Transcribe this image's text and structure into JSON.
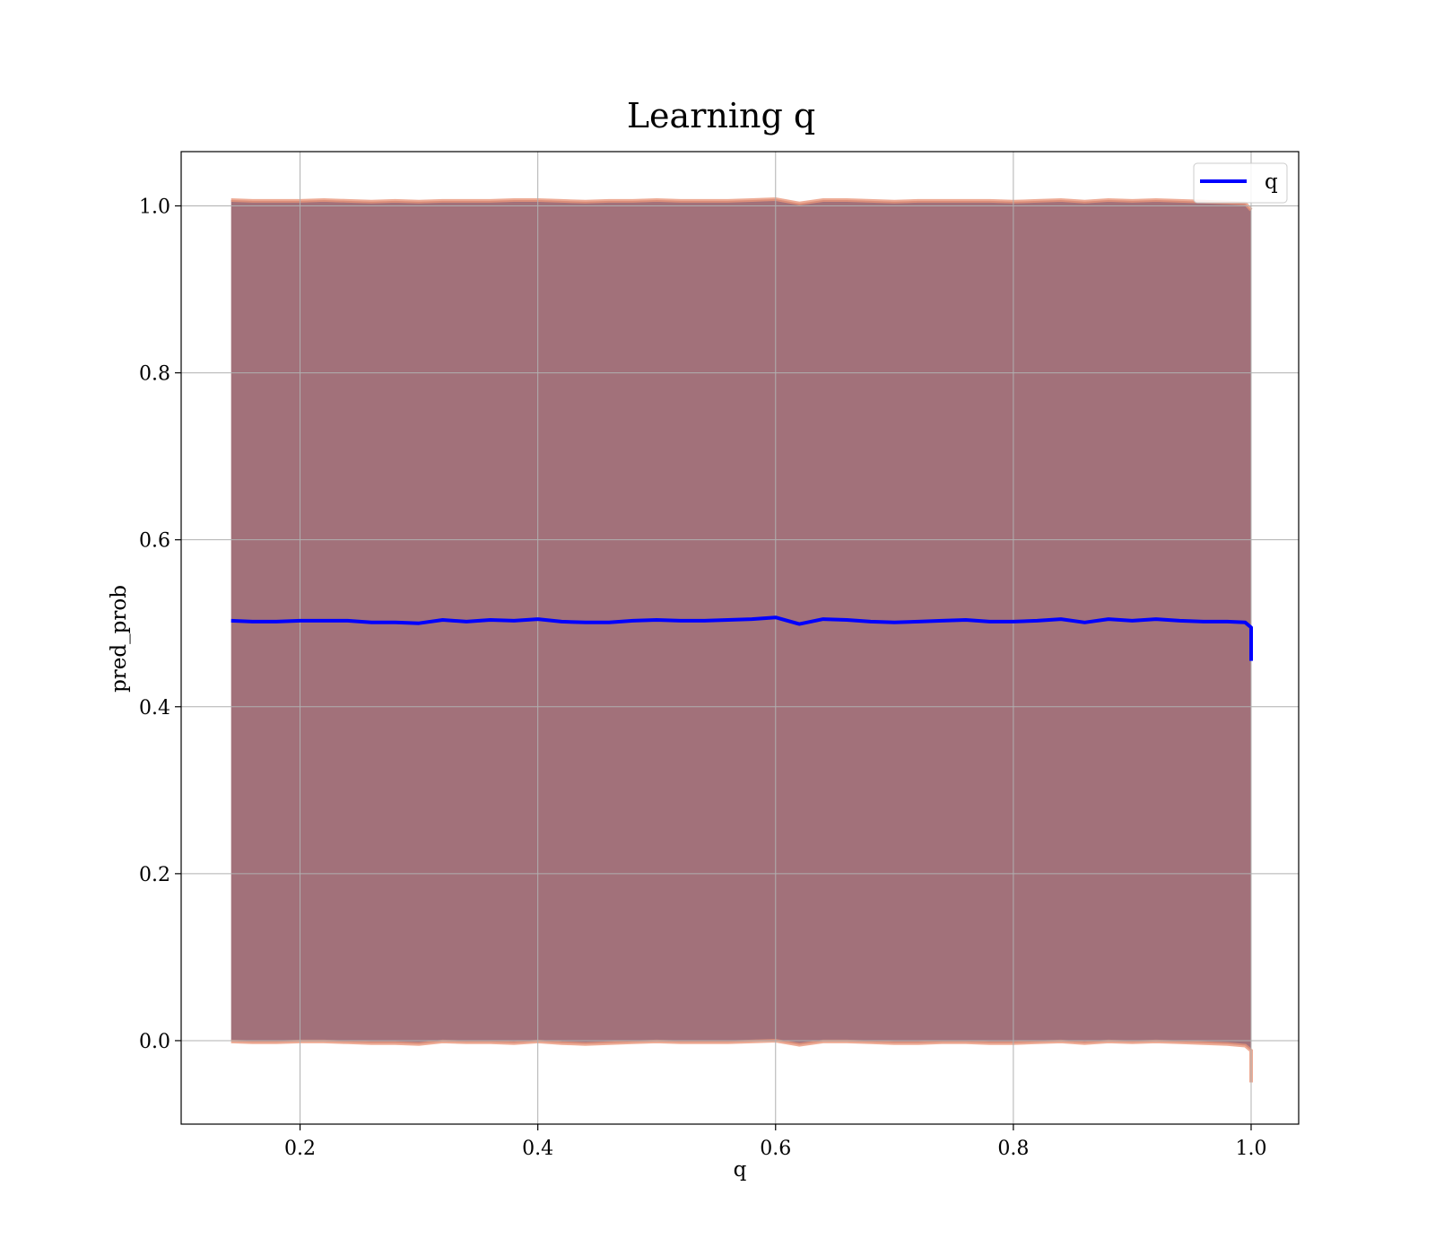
{
  "chart_data": {
    "type": "area",
    "title": "Learning q",
    "xlabel": "q",
    "ylabel": "pred_prob",
    "xlim": [
      0.1,
      1.04
    ],
    "ylim": [
      -0.1,
      1.065
    ],
    "x_ticks": [
      0.2,
      0.4,
      0.6,
      0.8,
      1.0
    ],
    "y_ticks": [
      0.0,
      0.2,
      0.4,
      0.6,
      0.8,
      1.0
    ],
    "x_tick_labels": [
      "0.2",
      "0.4",
      "0.6",
      "0.8",
      "1.0"
    ],
    "y_tick_labels": [
      "0.0",
      "0.2",
      "0.4",
      "0.6",
      "0.8",
      "1.0"
    ],
    "grid": true,
    "legend": {
      "location": "top-right",
      "entries": [
        {
          "label": "q",
          "color": "#0000ff"
        }
      ]
    },
    "band_fill_color": "#a2717a",
    "band_edge_color": "#e9967a",
    "series": [
      {
        "name": "q",
        "color": "#0000ff",
        "x": [
          0.142,
          0.16,
          0.18,
          0.2,
          0.22,
          0.24,
          0.26,
          0.28,
          0.3,
          0.32,
          0.34,
          0.36,
          0.38,
          0.4,
          0.42,
          0.44,
          0.46,
          0.48,
          0.5,
          0.52,
          0.54,
          0.56,
          0.58,
          0.6,
          0.62,
          0.64,
          0.66,
          0.68,
          0.7,
          0.72,
          0.74,
          0.76,
          0.78,
          0.8,
          0.82,
          0.84,
          0.86,
          0.88,
          0.9,
          0.92,
          0.94,
          0.96,
          0.98,
          0.995,
          1.0,
          1.0
        ],
        "y": [
          0.503,
          0.502,
          0.502,
          0.503,
          0.503,
          0.503,
          0.501,
          0.501,
          0.5,
          0.504,
          0.502,
          0.504,
          0.503,
          0.505,
          0.502,
          0.501,
          0.501,
          0.503,
          0.504,
          0.503,
          0.503,
          0.504,
          0.505,
          0.507,
          0.499,
          0.505,
          0.504,
          0.502,
          0.501,
          0.502,
          0.503,
          0.504,
          0.502,
          0.502,
          0.503,
          0.505,
          0.501,
          0.505,
          0.503,
          0.505,
          0.503,
          0.502,
          0.502,
          0.501,
          0.495,
          0.455
        ],
        "upper": [
          1.007,
          1.006,
          1.006,
          1.006,
          1.007,
          1.006,
          1.005,
          1.006,
          1.005,
          1.006,
          1.006,
          1.006,
          1.007,
          1.007,
          1.006,
          1.005,
          1.006,
          1.006,
          1.007,
          1.006,
          1.006,
          1.006,
          1.007,
          1.008,
          1.003,
          1.007,
          1.007,
          1.006,
          1.005,
          1.006,
          1.006,
          1.006,
          1.006,
          1.005,
          1.006,
          1.007,
          1.005,
          1.007,
          1.006,
          1.007,
          1.006,
          1.005,
          1.004,
          1.003,
          0.995,
          0.995
        ],
        "lower": [
          -0.001,
          -0.002,
          -0.002,
          -0.001,
          -0.001,
          -0.002,
          -0.003,
          -0.003,
          -0.004,
          -0.001,
          -0.002,
          -0.002,
          -0.003,
          -0.001,
          -0.003,
          -0.004,
          -0.003,
          -0.002,
          -0.001,
          -0.002,
          -0.002,
          -0.002,
          -0.001,
          0.0,
          -0.005,
          -0.001,
          -0.001,
          -0.002,
          -0.003,
          -0.003,
          -0.002,
          -0.002,
          -0.003,
          -0.003,
          -0.002,
          -0.001,
          -0.003,
          -0.001,
          -0.002,
          -0.001,
          -0.002,
          -0.003,
          -0.004,
          -0.006,
          -0.012,
          -0.05
        ]
      }
    ]
  }
}
